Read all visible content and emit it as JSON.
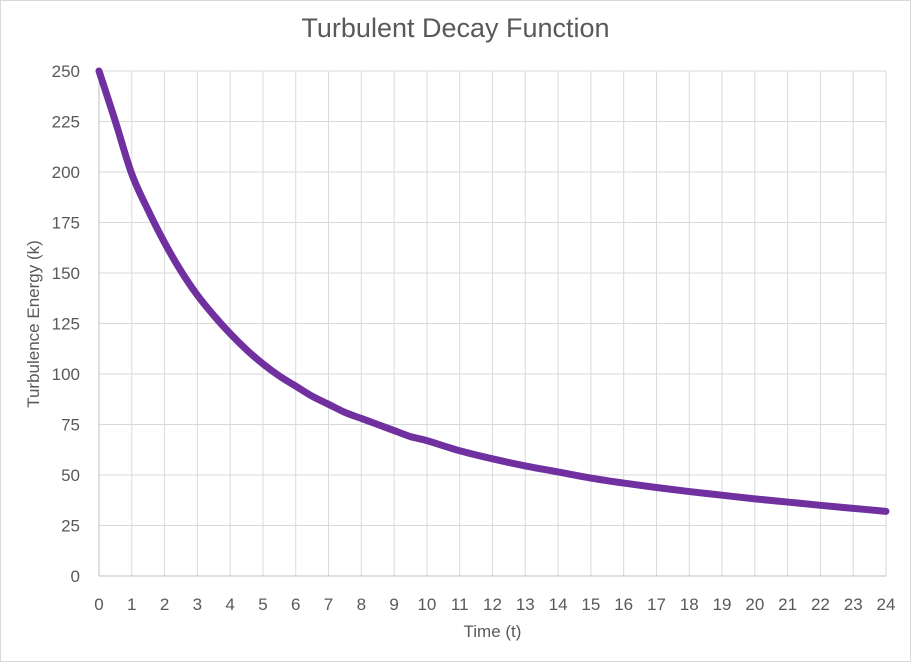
{
  "chart_data": {
    "type": "line",
    "title": "Turbulent Decay Function",
    "xlabel": "Time (t)",
    "ylabel": "Turbulence Energy (k)",
    "xlim": [
      0,
      24
    ],
    "ylim": [
      0,
      250
    ],
    "x_ticks": [
      "0",
      "1",
      "2",
      "3",
      "4",
      "5",
      "6",
      "7",
      "8",
      "9",
      "10",
      "11",
      "12",
      "13",
      "14",
      "15",
      "16",
      "17",
      "18",
      "19",
      "20",
      "21",
      "22",
      "23",
      "24"
    ],
    "y_ticks": [
      "0",
      "25",
      "50",
      "75",
      "100",
      "125",
      "150",
      "175",
      "200",
      "225",
      "250"
    ],
    "grid": true,
    "legend": "none",
    "series": [
      {
        "color": "#7030a0",
        "x": [
          0,
          0.5,
          1,
          1.5,
          2,
          2.5,
          3,
          3.5,
          4,
          4.5,
          5,
          5.5,
          6,
          6.5,
          7,
          7.5,
          8,
          8.5,
          9,
          9.5,
          10,
          11,
          12,
          13,
          14,
          15,
          16,
          17,
          18,
          19,
          20,
          21,
          22,
          23,
          24
        ],
        "y": [
          250,
          225,
          199,
          181,
          165,
          151,
          139,
          129,
          120,
          112,
          105,
          99,
          94,
          89,
          85,
          81,
          78,
          75,
          72,
          69,
          67,
          62,
          58,
          54.5,
          51.5,
          48.5,
          46,
          43.8,
          41.8,
          40,
          38.2,
          36.6,
          35,
          33.5,
          32
        ]
      }
    ]
  }
}
